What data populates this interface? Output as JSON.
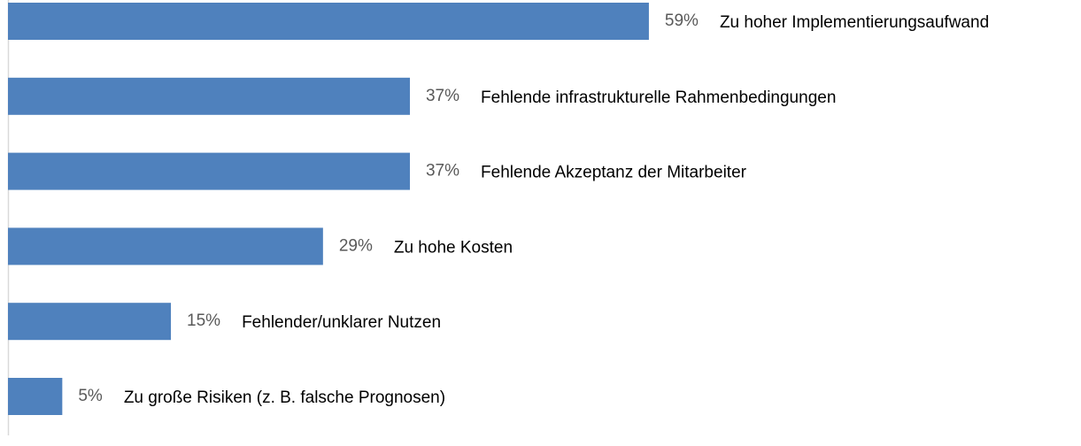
{
  "chart_data": {
    "type": "bar",
    "orientation": "horizontal",
    "color": "#4f81bd",
    "categories": [
      "Zu hoher Implementierungsaufwand",
      "Fehlende infrastrukturelle Rahmenbedingungen",
      "Fehlende Akzeptanz der Mitarbeiter",
      "Zu hohe Kosten",
      "Fehlender/unklarer Nutzen",
      "Zu große Risiken (z. B. falsche Prognosen)"
    ],
    "values": [
      59,
      37,
      37,
      29,
      15,
      5
    ],
    "value_labels": [
      "59%",
      "37%",
      "37%",
      "29%",
      "15%",
      "5%"
    ]
  }
}
